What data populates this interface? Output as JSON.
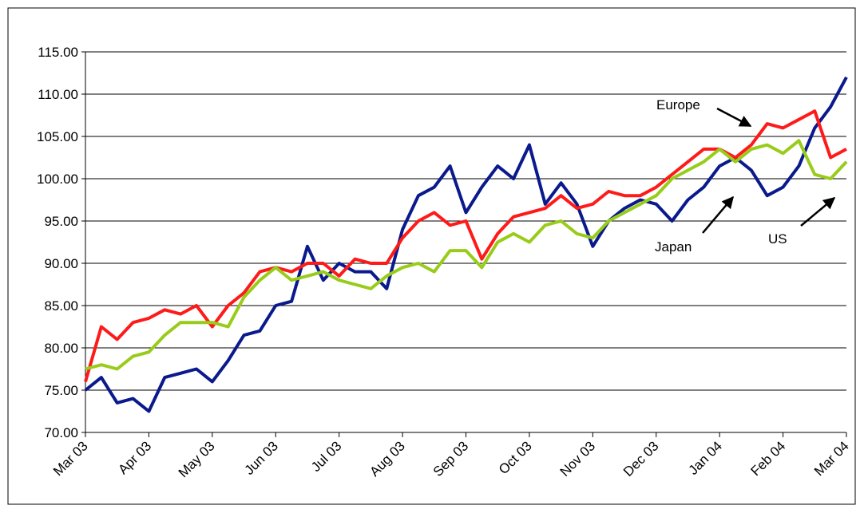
{
  "chart_data": {
    "type": "line",
    "categories": [
      "Mar 03",
      null,
      null,
      null,
      "Apr 03",
      null,
      null,
      null,
      "May 03",
      null,
      null,
      null,
      "Jun 03",
      null,
      null,
      null,
      "Jul 03",
      null,
      null,
      null,
      "Aug 03",
      null,
      null,
      null,
      "Sep 03",
      null,
      null,
      null,
      "Oct 03",
      null,
      null,
      null,
      "Nov 03",
      null,
      null,
      null,
      "Dec 03",
      null,
      null,
      null,
      "Jan 04",
      null,
      null,
      null,
      "Feb 04",
      null,
      null,
      null,
      "Mar 04"
    ],
    "series": [
      {
        "name": "Japan",
        "color": "#0a1a8c",
        "values": [
          75,
          76.5,
          73.5,
          74,
          72.5,
          76.5,
          77,
          77.5,
          76,
          78.5,
          81.5,
          82,
          85,
          85.5,
          92,
          88,
          90,
          89,
          89,
          87,
          94,
          98,
          99,
          101.5,
          96,
          99,
          101.5,
          100,
          104,
          97,
          99.5,
          97,
          92,
          95,
          96.5,
          97.5,
          97,
          95,
          97.5,
          99,
          101.5,
          102.5,
          101,
          98,
          99,
          101.5,
          106,
          108.5,
          112
        ]
      },
      {
        "name": "Europe",
        "color": "#ff1a1a",
        "values": [
          76,
          82.5,
          81,
          83,
          83.5,
          84.5,
          84,
          85,
          82.5,
          85,
          86.5,
          89,
          89.5,
          89,
          90,
          90,
          88.5,
          90.5,
          90,
          90,
          93,
          95,
          96,
          94.5,
          95,
          90.5,
          93.5,
          95.5,
          96,
          96.5,
          98,
          96.5,
          97,
          98.5,
          98,
          98,
          99,
          100.5,
          102,
          103.5,
          103.5,
          102.5,
          104,
          106.5,
          106,
          107,
          108,
          102.5,
          103.5
        ]
      },
      {
        "name": "US",
        "color": "#99cc1a",
        "values": [
          77.5,
          78,
          77.5,
          79,
          79.5,
          81.5,
          83,
          83,
          83,
          82.5,
          86,
          88,
          89.5,
          88,
          88.5,
          89,
          88,
          87.5,
          87,
          88.5,
          89.5,
          90,
          89,
          91.5,
          91.5,
          89.5,
          92.5,
          93.5,
          92.5,
          94.5,
          95,
          93.5,
          93,
          95,
          96,
          97,
          98,
          100,
          101,
          102,
          103.5,
          102,
          103.5,
          104,
          103,
          104.5,
          100.5,
          100,
          102
        ]
      }
    ],
    "annotations": [
      "Europe",
      "Japan",
      "US"
    ],
    "ylim": [
      70,
      115
    ],
    "yticks": [
      {
        "value": 70,
        "label": "70.00"
      },
      {
        "value": 75,
        "label": "75.00"
      },
      {
        "value": 80,
        "label": "80.00"
      },
      {
        "value": 85,
        "label": "85.00"
      },
      {
        "value": 90,
        "label": "90.00"
      },
      {
        "value": 95,
        "label": "95.00"
      },
      {
        "value": 100,
        "label": "100.00"
      },
      {
        "value": 105,
        "label": "105.00"
      },
      {
        "value": 110,
        "label": "110.00"
      },
      {
        "value": 115,
        "label": "115.00"
      }
    ],
    "grid": true
  }
}
